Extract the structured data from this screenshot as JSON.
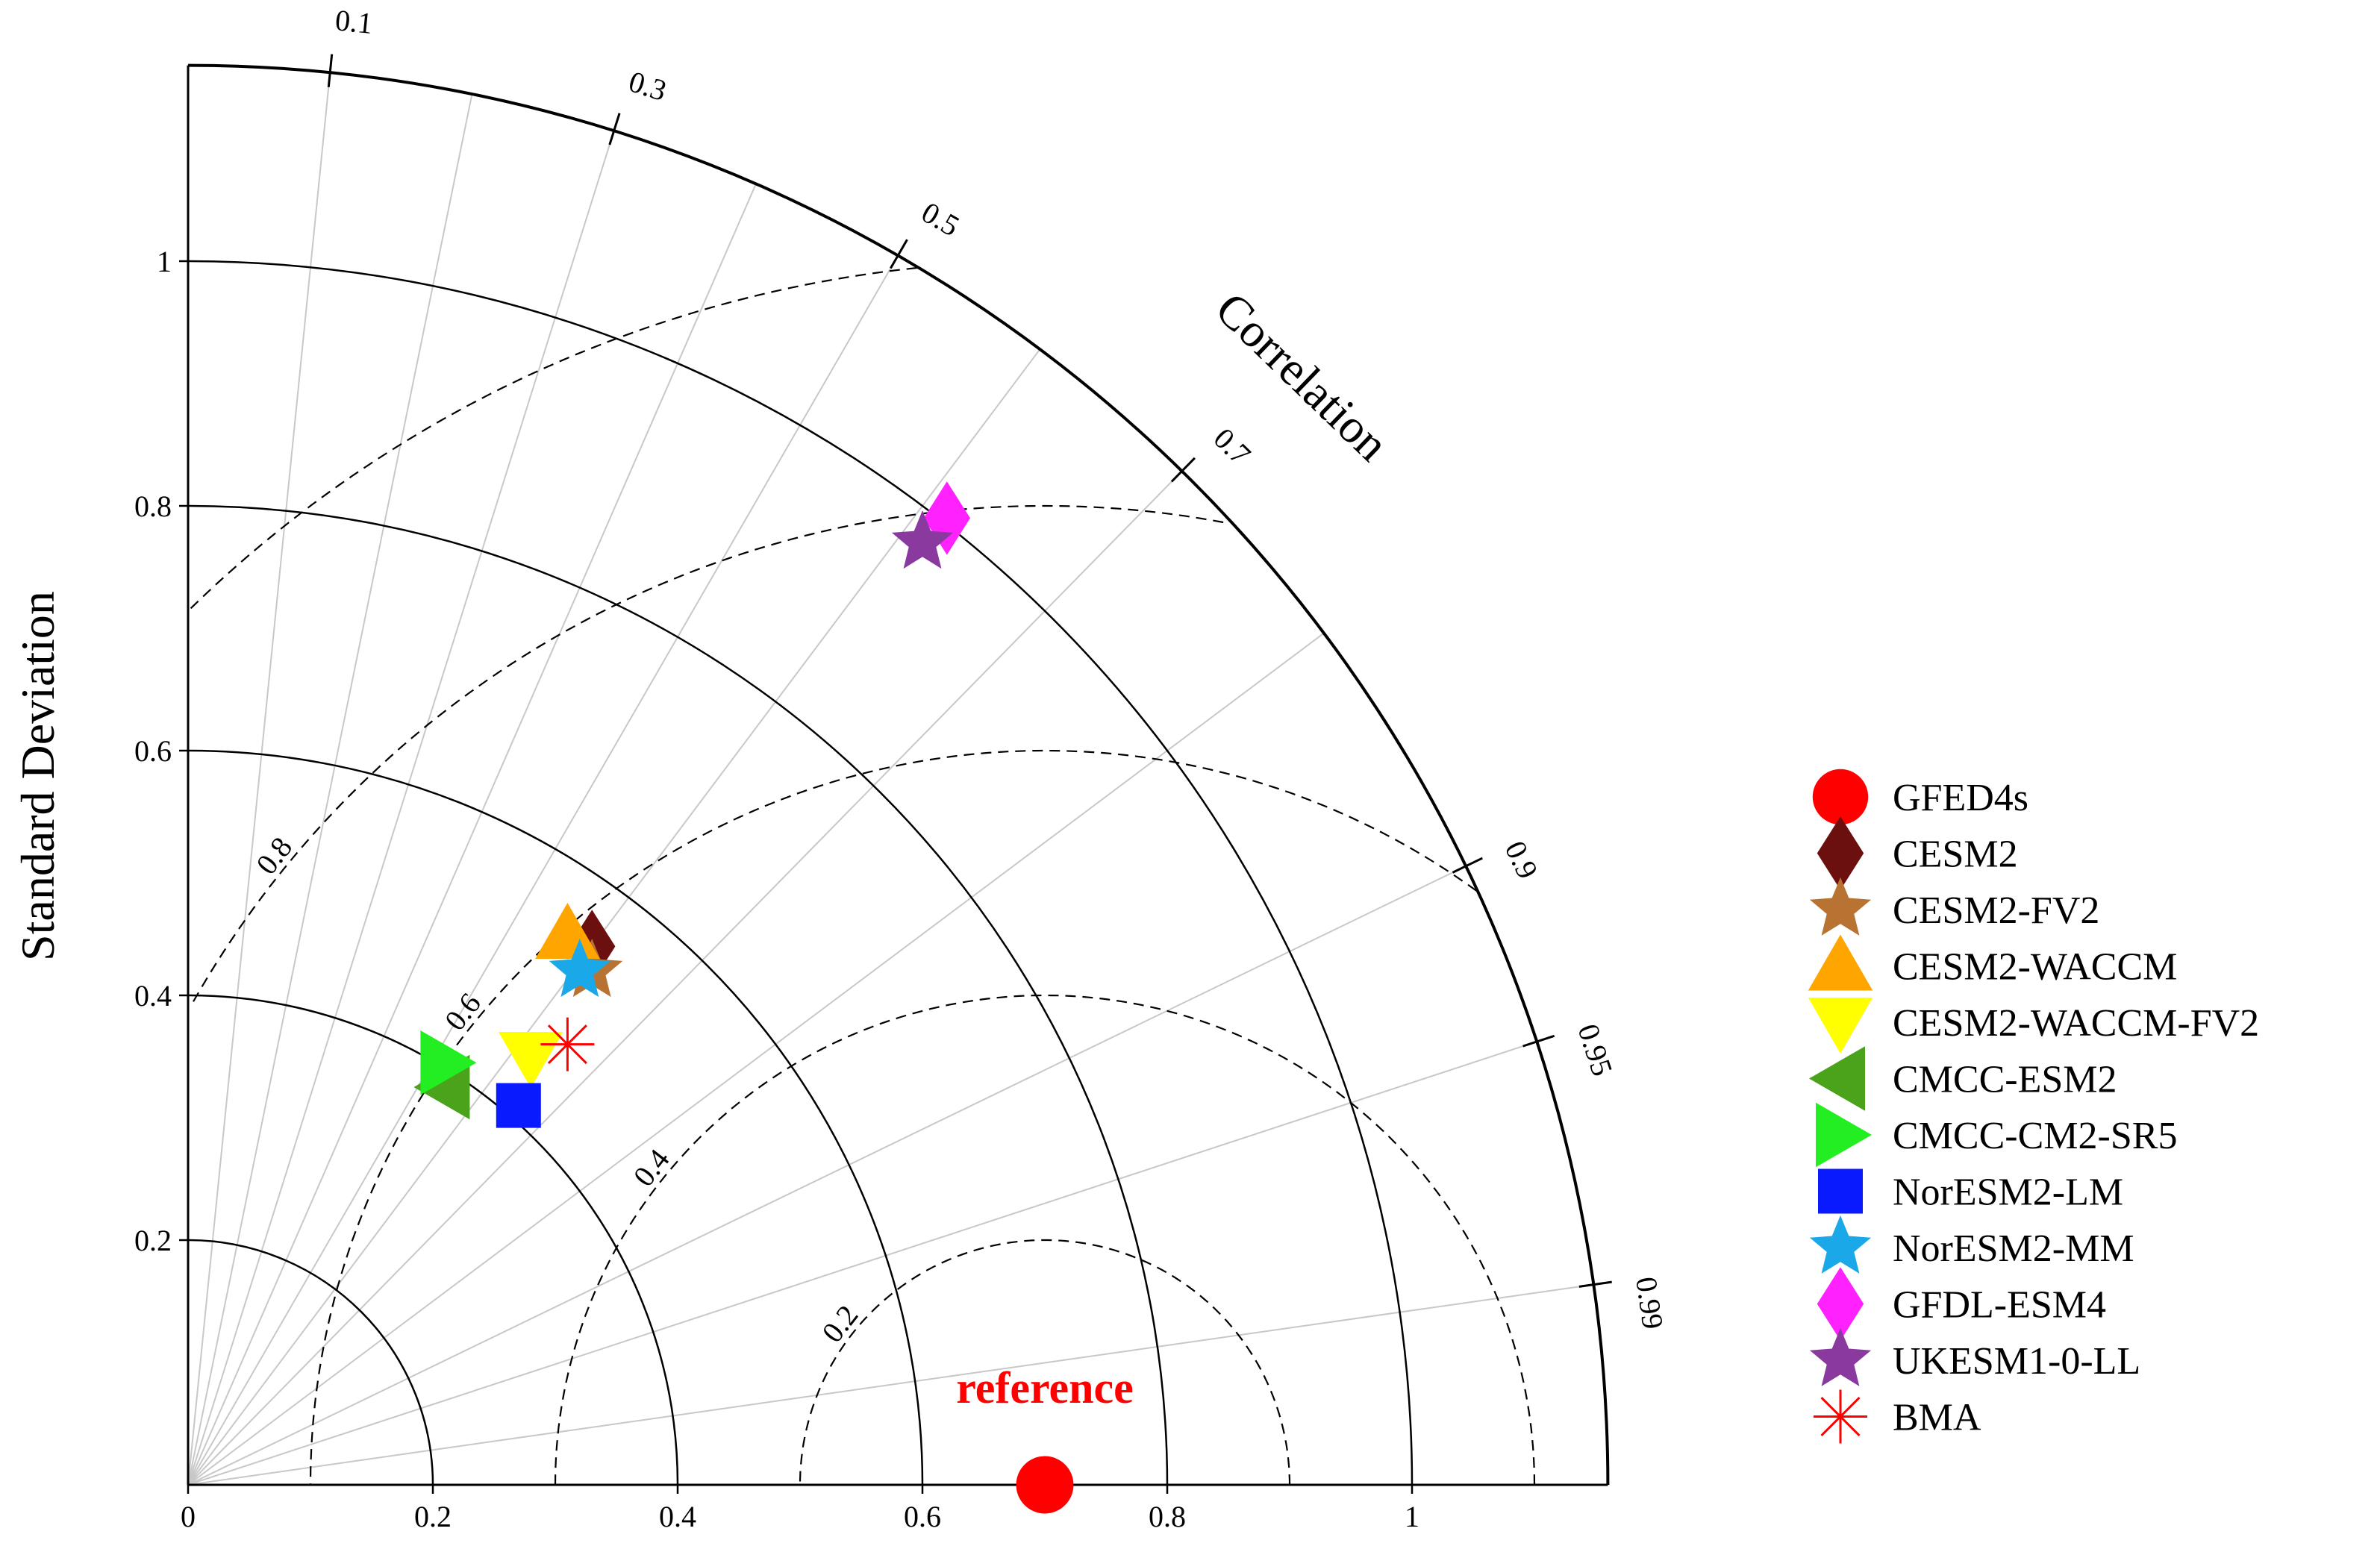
{
  "chart_data": {
    "type": "scatter",
    "subtype": "taylor-diagram",
    "ylabel": "Standard Deviation",
    "angle_label": "Correlation",
    "reference_label": "reference",
    "std_max": 1.16,
    "std_ticks": [
      "0",
      "0.2",
      "0.4",
      "0.6",
      "0.8",
      "1"
    ],
    "std_tick_values": [
      0,
      0.2,
      0.4,
      0.6,
      0.8,
      1.0
    ],
    "std_arcs": [
      0.2,
      0.4,
      0.6,
      0.8,
      1.0
    ],
    "correlation_ticks": [
      {
        "value": 0.1,
        "label": "0.1"
      },
      {
        "value": 0.3,
        "label": "0.3"
      },
      {
        "value": 0.5,
        "label": "0.5"
      },
      {
        "value": 0.7,
        "label": "0.7"
      },
      {
        "value": 0.9,
        "label": "0.9"
      },
      {
        "value": 0.95,
        "label": "0.95"
      },
      {
        "value": 0.99,
        "label": "0.99"
      }
    ],
    "rms_ticks": [
      {
        "value": 0.2,
        "label": "0.2",
        "labeled": true
      },
      {
        "value": 0.4,
        "label": "0.4",
        "labeled": true
      },
      {
        "value": 0.6,
        "label": "0.6",
        "labeled": true
      },
      {
        "value": 0.8,
        "label": "0.8",
        "labeled": true
      },
      {
        "value": 1.0,
        "label": "",
        "labeled": false
      }
    ],
    "reference": {
      "name": "GFED4s",
      "std": 0.7,
      "color": "#ff0000",
      "marker": "circle"
    },
    "series": [
      {
        "name": "CESM2",
        "x": 0.33,
        "y": 0.44,
        "color": "#6b0f0f",
        "marker": "diamond"
      },
      {
        "name": "CESM2-FV2",
        "x": 0.33,
        "y": 0.42,
        "color": "#b87333",
        "marker": "star"
      },
      {
        "name": "CESM2-WACCM",
        "x": 0.31,
        "y": 0.45,
        "color": "#ffa500",
        "marker": "triangle-up"
      },
      {
        "name": "CESM2-WACCM-FV2",
        "x": 0.28,
        "y": 0.35,
        "color": "#ffff00",
        "marker": "triangle-down"
      },
      {
        "name": "CMCC-ESM2",
        "x": 0.21,
        "y": 0.325,
        "color": "#4aa31a",
        "marker": "triangle-left"
      },
      {
        "name": "CMCC-CM2-SR5",
        "x": 0.21,
        "y": 0.345,
        "color": "#22ee22",
        "marker": "triangle-right"
      },
      {
        "name": "NorESM2-LM",
        "x": 0.27,
        "y": 0.31,
        "color": "#0a1aff",
        "marker": "square"
      },
      {
        "name": "NorESM2-MM",
        "x": 0.32,
        "y": 0.42,
        "color": "#1aa8e8",
        "marker": "star"
      },
      {
        "name": "GFDL-ESM4",
        "x": 0.62,
        "y": 0.79,
        "color": "#ff22ff",
        "marker": "diamond"
      },
      {
        "name": "UKESM1-0-LL",
        "x": 0.6,
        "y": 0.77,
        "color": "#8a3a9e",
        "marker": "star"
      },
      {
        "name": "BMA",
        "x": 0.31,
        "y": 0.36,
        "color": "#ff0000",
        "marker": "asterisk"
      }
    ],
    "legend_position": "right"
  }
}
